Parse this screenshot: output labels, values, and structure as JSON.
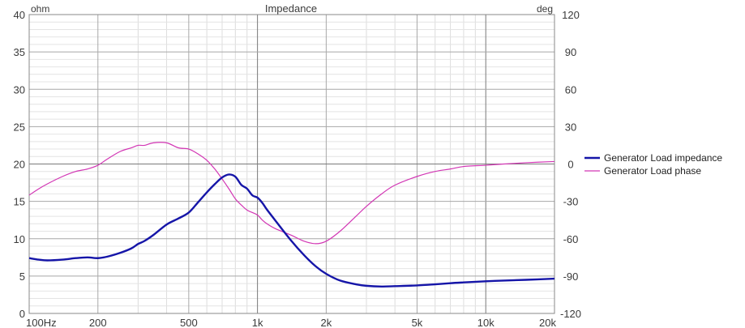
{
  "chart_data": {
    "type": "line",
    "title": "Impedance",
    "x_scale": "log",
    "xlim": [
      100,
      20000
    ],
    "x_tick_values": [
      100,
      200,
      500,
      1000,
      2000,
      5000,
      10000,
      20000
    ],
    "x_tick_labels": [
      "100Hz",
      "200",
      "500",
      "1k",
      "2k",
      "5k",
      "10k",
      "20k"
    ],
    "left_axis": {
      "unit_label": "ohm",
      "ylim": [
        0,
        40
      ],
      "tick_values": [
        0,
        5,
        10,
        15,
        20,
        25,
        30,
        35,
        40
      ],
      "tick_labels": [
        "0",
        "5",
        "10",
        "15",
        "20",
        "25",
        "30",
        "35",
        "40"
      ]
    },
    "right_axis": {
      "unit_label": "deg",
      "ylim": [
        -120,
        120
      ],
      "tick_values": [
        -120,
        -90,
        -60,
        -30,
        0,
        30,
        60,
        90,
        120
      ],
      "tick_labels": [
        "-120",
        "-90",
        "-60",
        "-30",
        "0",
        "30",
        "60",
        "90",
        "120"
      ]
    },
    "grid": true,
    "legend_position": "right",
    "series": [
      {
        "name": "Generator Load impedance",
        "axis": "left",
        "color": "#1515a8",
        "x": [
          100,
          110,
          120,
          140,
          160,
          180,
          200,
          220,
          250,
          280,
          300,
          320,
          350,
          400,
          450,
          500,
          550,
          600,
          650,
          700,
          750,
          800,
          850,
          900,
          950,
          1000,
          1050,
          1100,
          1200,
          1400,
          1600,
          1800,
          2000,
          2300,
          2700,
          3000,
          3500,
          4000,
          5000,
          6000,
          7000,
          8000,
          10000,
          12000,
          15000,
          20000
        ],
        "y": [
          7.4,
          7.2,
          7.1,
          7.2,
          7.4,
          7.5,
          7.4,
          7.6,
          8.1,
          8.7,
          9.3,
          9.7,
          10.5,
          11.9,
          12.7,
          13.5,
          14.9,
          16.2,
          17.3,
          18.2,
          18.6,
          18.3,
          17.2,
          16.7,
          15.8,
          15.5,
          14.8,
          13.9,
          12.4,
          9.8,
          7.8,
          6.3,
          5.3,
          4.4,
          3.9,
          3.7,
          3.6,
          3.65,
          3.75,
          3.9,
          4.05,
          4.15,
          4.3,
          4.4,
          4.5,
          4.65
        ]
      },
      {
        "name": "Generator Load phase",
        "axis": "right",
        "color": "#d236b4",
        "x": [
          100,
          110,
          120,
          140,
          160,
          180,
          200,
          220,
          250,
          280,
          300,
          320,
          350,
          400,
          450,
          500,
          550,
          600,
          650,
          700,
          750,
          800,
          850,
          900,
          950,
          1000,
          1050,
          1100,
          1200,
          1400,
          1600,
          1800,
          2000,
          2300,
          2700,
          3000,
          3500,
          4000,
          5000,
          6000,
          7000,
          8000,
          10000,
          12000,
          15000,
          20000
        ],
        "y": [
          -25,
          -20,
          -16,
          -10,
          -6,
          -4,
          -1,
          4,
          10,
          13,
          15,
          15,
          17,
          17,
          13,
          12,
          8,
          3,
          -4,
          -12,
          -20,
          -28,
          -33,
          -37,
          -39,
          -41,
          -45,
          -48,
          -52,
          -57,
          -62,
          -64,
          -62,
          -54,
          -42,
          -34,
          -24,
          -17,
          -10,
          -6,
          -4,
          -2,
          -1,
          0,
          1,
          2
        ]
      }
    ]
  }
}
